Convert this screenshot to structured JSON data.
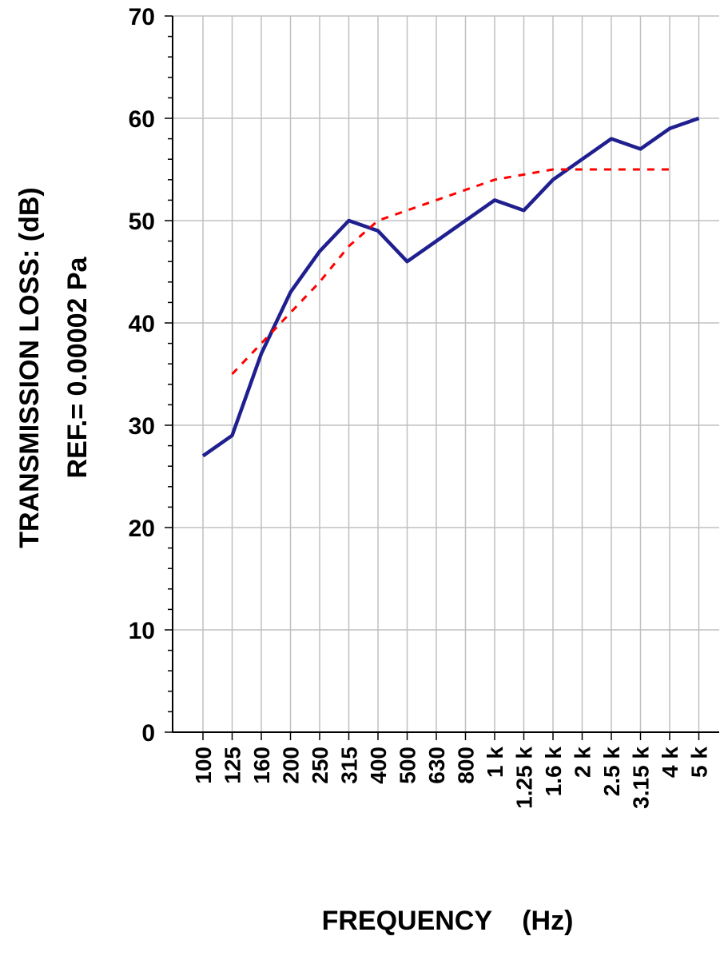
{
  "chart_data": {
    "type": "line",
    "title": "",
    "xlabel": "FREQUENCY    (Hz)",
    "ylabel_lines": [
      "TRANSMISSION LOSS:     (dB)",
      "REF.= 0.00002 Pa"
    ],
    "categories": [
      "100",
      "125",
      "160",
      "200",
      "250",
      "315",
      "400",
      "500",
      "630",
      "800",
      "1 k",
      "1.25 k",
      "1.6 k",
      "2 k",
      "2.5 k",
      "3.15 k",
      "4 k",
      "5 k"
    ],
    "ylim": [
      0,
      70
    ],
    "yticks": [
      0,
      10,
      20,
      30,
      40,
      50,
      60,
      70
    ],
    "grid": true,
    "legend": "none",
    "series": [
      {
        "style": "solid",
        "color": "#1f1f8f",
        "values": [
          27,
          29,
          37,
          43,
          47,
          50,
          49,
          46,
          48,
          50,
          52,
          51,
          54,
          56,
          58,
          57,
          59,
          60
        ]
      },
      {
        "style": "dashed",
        "color": "#ff0000",
        "values": [
          null,
          35,
          38,
          41,
          44,
          47.5,
          50,
          51,
          52,
          53,
          54,
          54.5,
          55,
          55,
          55,
          55,
          55,
          null
        ]
      }
    ]
  }
}
